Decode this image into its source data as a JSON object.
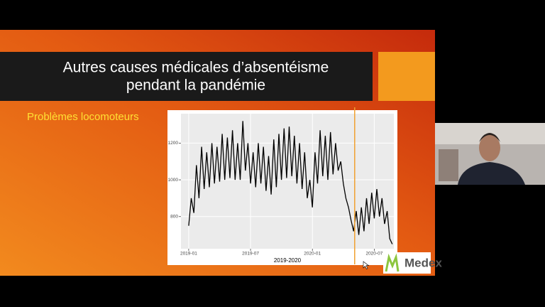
{
  "slide": {
    "title_lines": [
      "Autres causes médicales d’absentéisme",
      "pendant la pandémie"
    ],
    "subtitle": "Problèmes locomoteurs",
    "logo": "Medex"
  },
  "chart_data": {
    "type": "line",
    "x_label": "2019-2020",
    "x": [
      0,
      0.25,
      0.5,
      0.75,
      1,
      1.25,
      1.5,
      1.75,
      2,
      2.25,
      2.5,
      2.75,
      3,
      3.25,
      3.5,
      3.75,
      4,
      4.25,
      4.5,
      4.75,
      5,
      5.25,
      5.5,
      5.75,
      6,
      6.25,
      6.5,
      6.75,
      7,
      7.25,
      7.5,
      7.75,
      8,
      8.25,
      8.5,
      8.75,
      9,
      9.25,
      9.5,
      9.75,
      10,
      10.25,
      10.5,
      10.75,
      11,
      11.25,
      11.5,
      11.75,
      12,
      12.25,
      12.5,
      12.75,
      13,
      13.25,
      13.5,
      13.75,
      14,
      14.25,
      14.5,
      14.75,
      15,
      15.25,
      15.5,
      15.75,
      16,
      16.25,
      16.5,
      16.75,
      17,
      17.25,
      17.5,
      17.75,
      18,
      18.25,
      18.5,
      18.75,
      19,
      19.25,
      19.5,
      19.75
    ],
    "series": [
      {
        "color": "#000000",
        "values": [
          750,
          900,
          820,
          1080,
          900,
          1180,
          950,
          1150,
          960,
          1200,
          980,
          1180,
          990,
          1250,
          1000,
          1230,
          1010,
          1270,
          1000,
          1200,
          1000,
          1320,
          1050,
          1200,
          980,
          1150,
          960,
          1200,
          980,
          1180,
          940,
          1130,
          920,
          1220,
          960,
          1250,
          1000,
          1280,
          1010,
          1290,
          1020,
          1240,
          980,
          1200,
          950,
          1150,
          900,
          1000,
          850,
          1150,
          980,
          1270,
          1020,
          1240,
          1000,
          1260,
          1030,
          1200,
          1050,
          1100,
          980,
          900,
          850,
          780,
          720,
          830,
          700,
          850,
          720,
          900,
          760,
          930,
          790,
          950,
          800,
          900,
          760,
          830,
          680,
          650
        ]
      }
    ],
    "xlim": [
      -0.75,
      19.9
    ],
    "xticks": [
      {
        "value": 0,
        "label": "2019-01"
      },
      {
        "value": 6,
        "label": "2019-07"
      },
      {
        "value": 12,
        "label": "2020-01"
      },
      {
        "value": 18,
        "label": "2020-07"
      }
    ],
    "ylim": [
      625,
      1360
    ],
    "yticks": [
      800,
      1000,
      1200
    ],
    "grid": true,
    "vline": 16.1,
    "vline_color": "#f0a030"
  }
}
